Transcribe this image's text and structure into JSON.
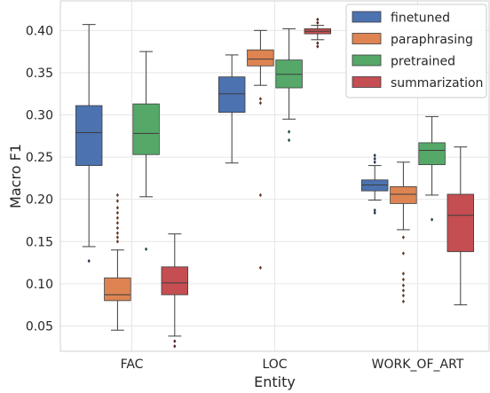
{
  "chart_data": {
    "type": "box",
    "xlabel": "Entity",
    "ylabel": "Macro F1",
    "ylim": [
      0.02,
      0.435
    ],
    "yticks": [
      0.05,
      0.1,
      0.15,
      0.2,
      0.25,
      0.3,
      0.35,
      0.4
    ],
    "ytick_labels": [
      "0.05",
      "0.10",
      "0.15",
      "0.20",
      "0.25",
      "0.30",
      "0.35",
      "0.40"
    ],
    "grid": true,
    "legend_position": "top-right",
    "categories": [
      "FAC",
      "LOC",
      "WORK_OF_ART"
    ],
    "series": [
      {
        "name": "finetuned",
        "color": "#4c72b0",
        "boxes": [
          {
            "whisker_low": 0.144,
            "q1": 0.24,
            "median": 0.279,
            "q3": 0.311,
            "whisker_high": 0.407,
            "outliers": [
              0.127
            ]
          },
          {
            "whisker_low": 0.243,
            "q1": 0.303,
            "median": 0.325,
            "q3": 0.345,
            "whisker_high": 0.371,
            "outliers": []
          },
          {
            "whisker_low": 0.199,
            "q1": 0.21,
            "median": 0.217,
            "q3": 0.223,
            "whisker_high": 0.24,
            "outliers": [
              0.184,
              0.187,
              0.244,
              0.248,
              0.252
            ]
          }
        ]
      },
      {
        "name": "paraphrasing",
        "color": "#dd8452",
        "boxes": [
          {
            "whisker_low": 0.045,
            "q1": 0.08,
            "median": 0.087,
            "q3": 0.107,
            "whisker_high": 0.14,
            "outliers": [
              0.15,
              0.155,
              0.16,
              0.166,
              0.172,
              0.178,
              0.184,
              0.19,
              0.198,
              0.205
            ]
          },
          {
            "whisker_low": 0.335,
            "q1": 0.358,
            "median": 0.366,
            "q3": 0.377,
            "whisker_high": 0.4,
            "outliers": [
              0.319,
              0.314,
              0.205,
              0.119
            ]
          },
          {
            "whisker_low": 0.164,
            "q1": 0.195,
            "median": 0.206,
            "q3": 0.215,
            "whisker_high": 0.244,
            "outliers": [
              0.155,
              0.136,
              0.112,
              0.105,
              0.098,
              0.092,
              0.086,
              0.079
            ]
          }
        ]
      },
      {
        "name": "pretrained",
        "color": "#55a868",
        "boxes": [
          {
            "whisker_low": 0.203,
            "q1": 0.253,
            "median": 0.278,
            "q3": 0.313,
            "whisker_high": 0.375,
            "outliers": [
              0.141
            ]
          },
          {
            "whisker_low": 0.295,
            "q1": 0.332,
            "median": 0.348,
            "q3": 0.365,
            "whisker_high": 0.402,
            "outliers": [
              0.28,
              0.27
            ]
          },
          {
            "whisker_low": 0.205,
            "q1": 0.241,
            "median": 0.258,
            "q3": 0.267,
            "whisker_high": 0.298,
            "outliers": [
              0.176
            ]
          }
        ]
      },
      {
        "name": "summarization",
        "color": "#c44e52",
        "boxes": [
          {
            "whisker_low": 0.038,
            "q1": 0.087,
            "median": 0.101,
            "q3": 0.12,
            "whisker_high": 0.159,
            "outliers": [
              0.032,
              0.026
            ]
          },
          {
            "whisker_low": 0.389,
            "q1": 0.396,
            "median": 0.399,
            "q3": 0.402,
            "whisker_high": 0.406,
            "outliers": [
              0.385,
              0.381,
              0.409,
              0.413
            ]
          },
          {
            "whisker_low": 0.075,
            "q1": 0.138,
            "median": 0.181,
            "q3": 0.206,
            "whisker_high": 0.262,
            "outliers": []
          }
        ]
      }
    ]
  }
}
